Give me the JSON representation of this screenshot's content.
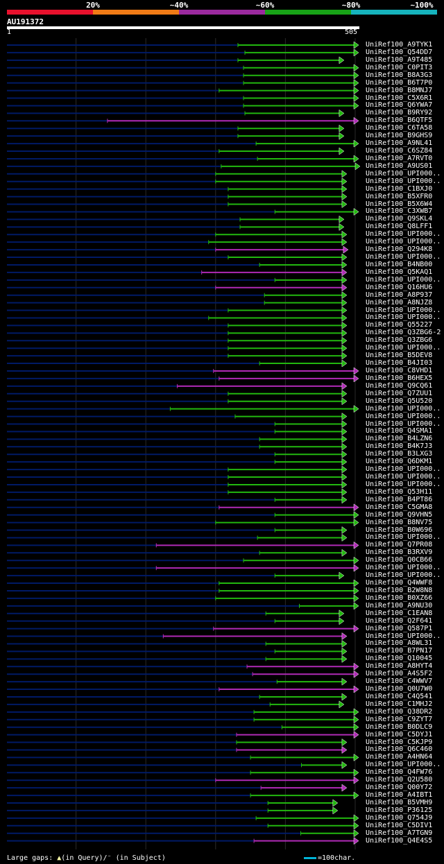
{
  "legend": {
    "labels": [
      "20%",
      "~40%",
      "~60%",
      "~80%",
      "~100%"
    ],
    "colors": [
      "#e8112d",
      "#f07b16",
      "#9b2a9e",
      "#18a317",
      "#16b3bd"
    ]
  },
  "query": {
    "name": "AU191372",
    "start_label": "1",
    "end_label": "505",
    "length": 505
  },
  "colors": {
    "background": "#000000",
    "unaligned_line": "#001a66",
    "gridline": "#2a2a2a",
    "gap_marker": "#ffffaa"
  },
  "chart_data": {
    "type": "alignment",
    "x_range": [
      1,
      505
    ],
    "hits": [
      {
        "name": "UniRef100_A9TYK1",
        "start": 332,
        "end": 505,
        "color": "green",
        "arrow": "right"
      },
      {
        "name": "UniRef100_Q54DD7",
        "start": 342,
        "end": 505,
        "color": "green",
        "arrow": "right"
      },
      {
        "name": "UniRef100_A9T485",
        "start": 332,
        "end": 484,
        "color": "green",
        "arrow": "right"
      },
      {
        "name": "UniRef100_C0PIT3",
        "start": 340,
        "end": 505,
        "color": "green",
        "arrow": "right"
      },
      {
        "name": "UniRef100_B8A3G3",
        "start": 340,
        "end": 505,
        "color": "green",
        "arrow": "right"
      },
      {
        "name": "UniRef100_B6T7P0",
        "start": 340,
        "end": 505,
        "color": "green",
        "arrow": "right"
      },
      {
        "name": "UniRef100_B8MNJ7",
        "start": 305,
        "end": 505,
        "color": "green",
        "arrow": "right"
      },
      {
        "name": "UniRef100_C5X6R1",
        "start": 340,
        "end": 505,
        "color": "green",
        "arrow": "right"
      },
      {
        "name": "UniRef100_Q6YWA7",
        "start": 340,
        "end": 505,
        "color": "green",
        "arrow": "right"
      },
      {
        "name": "UniRef100_B9RY92",
        "start": 342,
        "end": 484,
        "color": "green",
        "arrow": "right"
      },
      {
        "name": "UniRef100_B6QTF5",
        "start": 145,
        "end": 505,
        "color": "purple",
        "arrow": "right"
      },
      {
        "name": "UniRef100_C6TA58",
        "start": 332,
        "end": 484,
        "color": "green",
        "arrow": "right"
      },
      {
        "name": "UniRef100_B9GHS9",
        "start": 332,
        "end": 484,
        "color": "green",
        "arrow": "right"
      },
      {
        "name": "UniRef100_A9NL41",
        "start": 358,
        "end": 505,
        "color": "green",
        "arrow": "right"
      },
      {
        "name": "UniRef100_C6SZ84",
        "start": 305,
        "end": 484,
        "color": "green",
        "arrow": "right"
      },
      {
        "name": "UniRef100_A7RVT0",
        "start": 360,
        "end": 505,
        "color": "green",
        "arrow": "right"
      },
      {
        "name": "UniRef100_A9US01",
        "start": 308,
        "end": 507,
        "color": "green",
        "arrow": "right"
      },
      {
        "name": "UniRef100_UPI000..",
        "start": 300,
        "end": 488,
        "color": "green",
        "arrow": "right"
      },
      {
        "name": "UniRef100_UPI000..",
        "start": 300,
        "end": 488,
        "color": "green",
        "arrow": "right"
      },
      {
        "name": "UniRef100_C1BXJ0",
        "start": 318,
        "end": 488,
        "color": "green",
        "arrow": "right"
      },
      {
        "name": "UniRef100_B5XFR0",
        "start": 318,
        "end": 488,
        "color": "green",
        "arrow": "right"
      },
      {
        "name": "UniRef100_B5X6W4",
        "start": 318,
        "end": 488,
        "color": "green",
        "arrow": "right"
      },
      {
        "name": "UniRef100_C3XWB7",
        "start": 385,
        "end": 505,
        "color": "green",
        "arrow": "right"
      },
      {
        "name": "UniRef100_Q9SKL4",
        "start": 335,
        "end": 484,
        "color": "green",
        "arrow": "right"
      },
      {
        "name": "UniRef100_Q8LFF1",
        "start": 335,
        "end": 484,
        "color": "green",
        "arrow": "right"
      },
      {
        "name": "UniRef100_UPI000..",
        "start": 300,
        "end": 488,
        "color": "green",
        "arrow": "right"
      },
      {
        "name": "UniRef100_UPI000..",
        "start": 290,
        "end": 488,
        "color": "green",
        "arrow": "right"
      },
      {
        "name": "UniRef100_Q294K8",
        "start": 300,
        "end": 490,
        "color": "purple",
        "arrow": "right"
      },
      {
        "name": "UniRef100_UPI000..",
        "start": 318,
        "end": 488,
        "color": "green",
        "arrow": "right"
      },
      {
        "name": "UniRef100_B4NB00",
        "start": 363,
        "end": 488,
        "color": "green",
        "arrow": "right"
      },
      {
        "name": "UniRef100_Q5KAQ1",
        "start": 280,
        "end": 488,
        "color": "purple",
        "arrow": "right"
      },
      {
        "name": "UniRef100_UPI000..",
        "start": 385,
        "end": 488,
        "color": "green",
        "arrow": "right"
      },
      {
        "name": "UniRef100_Q16HU6",
        "start": 300,
        "end": 488,
        "color": "purple",
        "arrow": "right"
      },
      {
        "name": "UniRef100_A8P937",
        "start": 370,
        "end": 488,
        "color": "green",
        "arrow": "right"
      },
      {
        "name": "UniRef100_A8NJZ8",
        "start": 370,
        "end": 488,
        "color": "green",
        "arrow": "right"
      },
      {
        "name": "UniRef100_UPI000..",
        "start": 318,
        "end": 488,
        "color": "green",
        "arrow": "right"
      },
      {
        "name": "UniRef100_UPI000..",
        "start": 290,
        "end": 488,
        "color": "green",
        "arrow": "right"
      },
      {
        "name": "UniRef100_Q55227",
        "start": 318,
        "end": 488,
        "color": "green",
        "arrow": "right"
      },
      {
        "name": "UniRef100_Q3ZBG6-2",
        "start": 318,
        "end": 488,
        "color": "green",
        "arrow": "right"
      },
      {
        "name": "UniRef100_Q3ZBG6",
        "start": 318,
        "end": 488,
        "color": "green",
        "arrow": "right"
      },
      {
        "name": "UniRef100_UPI000..",
        "start": 318,
        "end": 488,
        "color": "green",
        "arrow": "right"
      },
      {
        "name": "UniRef100_B5DEV8",
        "start": 318,
        "end": 488,
        "color": "green",
        "arrow": "right"
      },
      {
        "name": "UniRef100_B4JI03",
        "start": 363,
        "end": 488,
        "color": "green",
        "arrow": "right"
      },
      {
        "name": "UniRef100_C8VHD1",
        "start": 297,
        "end": 505,
        "color": "purple",
        "arrow": "right"
      },
      {
        "name": "UniRef100_B6HEX5",
        "start": 305,
        "end": 505,
        "color": "purple",
        "arrow": "right"
      },
      {
        "name": "UniRef100_Q9CQ61",
        "start": 245,
        "end": 488,
        "color": "purple",
        "arrow": "right"
      },
      {
        "name": "UniRef100_Q7ZUU1",
        "start": 318,
        "end": 488,
        "color": "green",
        "arrow": "right"
      },
      {
        "name": "UniRef100_Q5U520",
        "start": 318,
        "end": 488,
        "color": "green",
        "arrow": "right"
      },
      {
        "name": "UniRef100_UPI000..",
        "start": 235,
        "end": 505,
        "color": "green",
        "arrow": "right"
      },
      {
        "name": "UniRef100_UPI000..",
        "start": 328,
        "end": 488,
        "color": "green",
        "arrow": "right"
      },
      {
        "name": "UniRef100_UPI000..",
        "start": 385,
        "end": 488,
        "color": "green",
        "arrow": "right"
      },
      {
        "name": "UniRef100_Q4SMA1",
        "start": 385,
        "end": 488,
        "color": "green",
        "arrow": "right"
      },
      {
        "name": "UniRef100_B4LZN6",
        "start": 363,
        "end": 488,
        "color": "green",
        "arrow": "right"
      },
      {
        "name": "UniRef100_B4K7J3",
        "start": 363,
        "end": 488,
        "color": "green",
        "arrow": "right"
      },
      {
        "name": "UniRef100_B3LXG3",
        "start": 385,
        "end": 488,
        "color": "green",
        "arrow": "right"
      },
      {
        "name": "UniRef100_Q6DKM1",
        "start": 385,
        "end": 488,
        "color": "green",
        "arrow": "right"
      },
      {
        "name": "UniRef100_UPI000..",
        "start": 318,
        "end": 488,
        "color": "green",
        "arrow": "right"
      },
      {
        "name": "UniRef100_UPI000..",
        "start": 318,
        "end": 488,
        "color": "green",
        "arrow": "right"
      },
      {
        "name": "UniRef100_UPI000..",
        "start": 318,
        "end": 488,
        "color": "green",
        "arrow": "right"
      },
      {
        "name": "UniRef100_Q53H11",
        "start": 318,
        "end": 488,
        "color": "green",
        "arrow": "right"
      },
      {
        "name": "UniRef100_B4PT86",
        "start": 385,
        "end": 488,
        "color": "green",
        "arrow": "right"
      },
      {
        "name": "UniRef100_C5GMA8",
        "start": 305,
        "end": 505,
        "color": "purple",
        "arrow": "right"
      },
      {
        "name": "UniRef100_Q9VHN5",
        "start": 385,
        "end": 505,
        "color": "green",
        "arrow": "right"
      },
      {
        "name": "UniRef100_B8NV75",
        "start": 300,
        "end": 505,
        "color": "green",
        "arrow": "right"
      },
      {
        "name": "UniRef100_B0W696",
        "start": 385,
        "end": 488,
        "color": "green",
        "arrow": "right"
      },
      {
        "name": "UniRef100_UPI000..",
        "start": 360,
        "end": 488,
        "color": "green",
        "arrow": "right"
      },
      {
        "name": "UniRef100_Q7PR08",
        "start": 215,
        "end": 505,
        "color": "purple",
        "arrow": "right"
      },
      {
        "name": "UniRef100_B3RXV9",
        "start": 363,
        "end": 488,
        "color": "green",
        "arrow": "right"
      },
      {
        "name": "UniRef100_Q0CB66",
        "start": 340,
        "end": 505,
        "color": "green",
        "arrow": "right"
      },
      {
        "name": "UniRef100_UPI000..",
        "start": 215,
        "end": 505,
        "color": "purple",
        "arrow": "right"
      },
      {
        "name": "UniRef100_UPI000..",
        "start": 385,
        "end": 484,
        "color": "green",
        "arrow": "right"
      },
      {
        "name": "UniRef100_Q4WWF8",
        "start": 305,
        "end": 505,
        "color": "green",
        "arrow": "right"
      },
      {
        "name": "UniRef100_B2W8N8",
        "start": 305,
        "end": 505,
        "color": "green",
        "arrow": "right"
      },
      {
        "name": "UniRef100_B0XZ66",
        "start": 300,
        "end": 505,
        "color": "green",
        "arrow": "right"
      },
      {
        "name": "UniRef100_A9NU30",
        "start": 420,
        "end": 505,
        "color": "green",
        "arrow": "right"
      },
      {
        "name": "UniRef100_C1EAN8",
        "start": 372,
        "end": 484,
        "color": "green",
        "arrow": "right"
      },
      {
        "name": "UniRef100_Q2F641",
        "start": 385,
        "end": 484,
        "color": "green",
        "arrow": "right"
      },
      {
        "name": "UniRef100_Q587P1",
        "start": 297,
        "end": 505,
        "color": "purple",
        "arrow": "right"
      },
      {
        "name": "UniRef100_UPI000..",
        "start": 225,
        "end": 488,
        "color": "purple",
        "arrow": "right"
      },
      {
        "name": "UniRef100_A8WL31",
        "start": 372,
        "end": 488,
        "color": "green",
        "arrow": "right"
      },
      {
        "name": "UniRef100_B7PN17",
        "start": 385,
        "end": 488,
        "color": "green",
        "arrow": "right"
      },
      {
        "name": "UniRef100_Q10045",
        "start": 372,
        "end": 488,
        "color": "green",
        "arrow": "right"
      },
      {
        "name": "UniRef100_A8HYT4",
        "start": 345,
        "end": 505,
        "color": "purple",
        "arrow": "right"
      },
      {
        "name": "UniRef100_A4S5F2",
        "start": 353,
        "end": 505,
        "color": "purple",
        "arrow": "right"
      },
      {
        "name": "UniRef100_C4WWV7",
        "start": 388,
        "end": 488,
        "color": "green",
        "arrow": "right"
      },
      {
        "name": "UniRef100_Q0U7W0",
        "start": 305,
        "end": 505,
        "color": "purple",
        "arrow": "right"
      },
      {
        "name": "UniRef100_C4Q541",
        "start": 363,
        "end": 488,
        "color": "green",
        "arrow": "right"
      },
      {
        "name": "UniRef100_C1MHJ2",
        "start": 378,
        "end": 484,
        "color": "green",
        "arrow": "right"
      },
      {
        "name": "UniRef100_Q38DR2",
        "start": 355,
        "end": 505,
        "color": "green",
        "arrow": "right"
      },
      {
        "name": "UniRef100_C9ZYT7",
        "start": 355,
        "end": 505,
        "color": "green",
        "arrow": "right"
      },
      {
        "name": "UniRef100_B0DLC9",
        "start": 395,
        "end": 505,
        "color": "green",
        "arrow": "right"
      },
      {
        "name": "UniRef100_C5DYJ1",
        "start": 330,
        "end": 505,
        "color": "purple",
        "arrow": "right"
      },
      {
        "name": "UniRef100_C5KJP9",
        "start": 330,
        "end": 488,
        "color": "green",
        "arrow": "right"
      },
      {
        "name": "UniRef100_Q6C460",
        "start": 330,
        "end": 488,
        "color": "purple",
        "arrow": "right"
      },
      {
        "name": "UniRef100_A4HN64",
        "start": 350,
        "end": 505,
        "color": "green",
        "arrow": "right"
      },
      {
        "name": "UniRef100_UPI000..",
        "start": 423,
        "end": 488,
        "color": "green",
        "arrow": "right"
      },
      {
        "name": "UniRef100_Q4FW76",
        "start": 350,
        "end": 505,
        "color": "green",
        "arrow": "right"
      },
      {
        "name": "UniRef100_Q2U580",
        "start": 300,
        "end": 505,
        "color": "purple",
        "arrow": "right"
      },
      {
        "name": "UniRef100_Q00Y72",
        "start": 365,
        "end": 488,
        "color": "purple",
        "arrow": "right"
      },
      {
        "name": "UniRef100_A4IBT1",
        "start": 350,
        "end": 505,
        "color": "green",
        "arrow": "right"
      },
      {
        "name": "UniRef100_B5VMH9",
        "start": 375,
        "end": 475,
        "color": "green",
        "arrow": "right"
      },
      {
        "name": "UniRef100_P36125",
        "start": 375,
        "end": 475,
        "color": "green",
        "arrow": "right"
      },
      {
        "name": "UniRef100_Q754J9",
        "start": 358,
        "end": 505,
        "color": "green",
        "arrow": "right"
      },
      {
        "name": "UniRef100_C5DIV1",
        "start": 375,
        "end": 505,
        "color": "green",
        "arrow": "right"
      },
      {
        "name": "UniRef100_A7TGN9",
        "start": 422,
        "end": 505,
        "color": "green",
        "arrow": "right"
      },
      {
        "name": "UniRef100_Q4E4S5",
        "start": 355,
        "end": 505,
        "color": "purple",
        "arrow": "right"
      }
    ]
  },
  "footer": {
    "gap_label": "Large gaps:",
    "in_query": "(in Query)/",
    "in_subject": "(in Subject)",
    "scale_label": "=100char."
  }
}
